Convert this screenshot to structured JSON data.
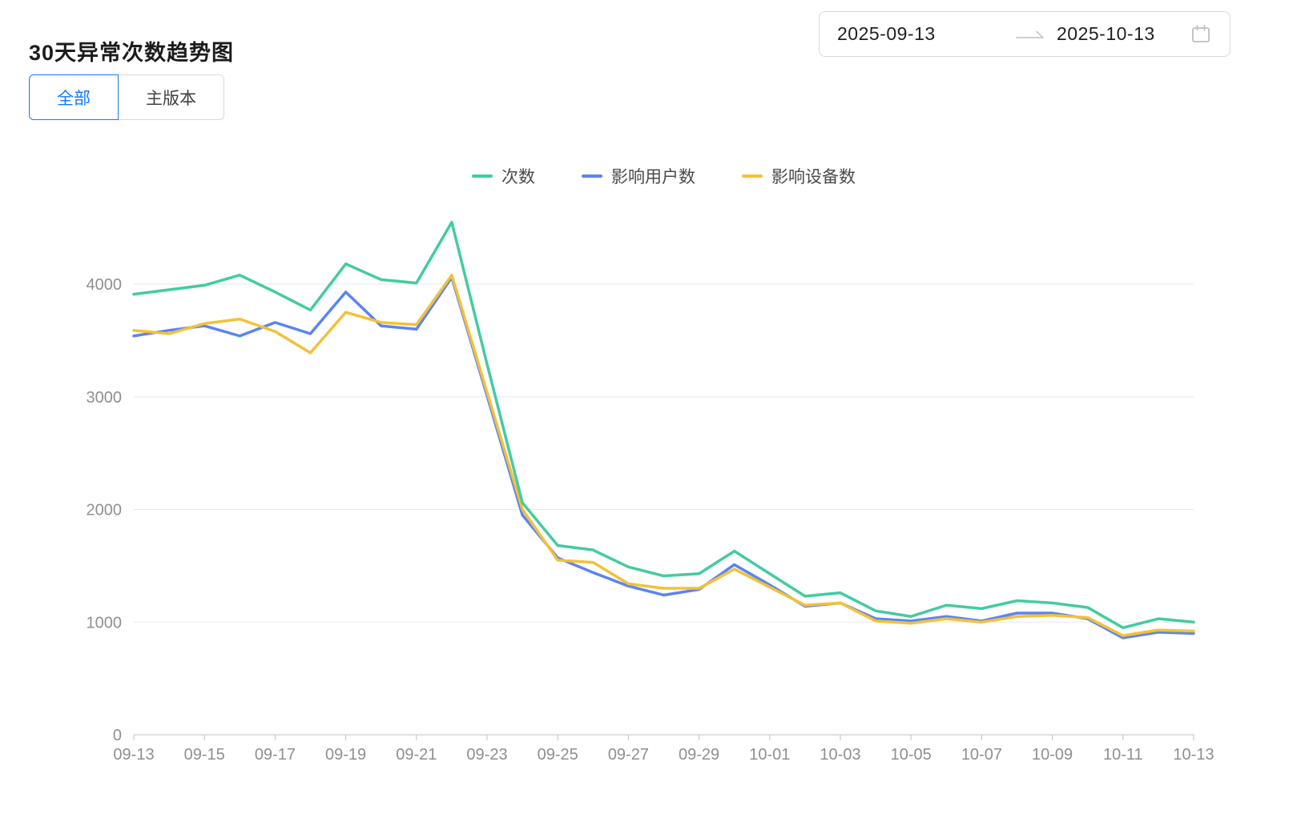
{
  "page": {
    "title": "30天异常次数趋势图"
  },
  "date_picker": {
    "start": "2025-09-13",
    "end": "2025-10-13",
    "arrow_icon": "swap-right-arrow",
    "calendar_icon": "calendar"
  },
  "tabs": [
    {
      "label": "全部",
      "active": true
    },
    {
      "label": "主版本",
      "active": false
    }
  ],
  "colors": {
    "accent_blue": "#1677ff",
    "border_gray": "#d9d9d9",
    "title_text": "#1c1c1c",
    "legend_text": "#4a4a4a"
  },
  "chart_data": {
    "type": "line",
    "title": "30天异常次数趋势图",
    "xlabel": "",
    "ylabel": "",
    "ylim": [
      0,
      4600
    ],
    "y_ticks": [
      0,
      1000,
      2000,
      3000,
      4000
    ],
    "grid": "horizontal-only",
    "legend_position": "top-center",
    "x": [
      "09-13",
      "09-14",
      "09-15",
      "09-16",
      "09-17",
      "09-18",
      "09-19",
      "09-20",
      "09-21",
      "09-22",
      "09-23",
      "09-24",
      "09-25",
      "09-26",
      "09-27",
      "09-28",
      "09-29",
      "09-30",
      "10-01",
      "10-02",
      "10-03",
      "10-04",
      "10-05",
      "10-06",
      "10-07",
      "10-08",
      "10-09",
      "10-10",
      "10-11",
      "10-12",
      "10-13"
    ],
    "x_tick_labels": [
      "09-13",
      "09-15",
      "09-17",
      "09-19",
      "09-21",
      "09-23",
      "09-25",
      "09-27",
      "09-29",
      "10-01",
      "10-03",
      "10-05",
      "10-07",
      "10-09",
      "10-11",
      "10-13"
    ],
    "series": [
      {
        "name": "次数",
        "key": "count",
        "color": "#43cba2",
        "values": [
          3910,
          3950,
          3990,
          4080,
          3930,
          3770,
          4180,
          4040,
          4010,
          4550,
          3290,
          2060,
          1680,
          1640,
          1490,
          1410,
          1430,
          1630,
          1430,
          1230,
          1260,
          1100,
          1050,
          1150,
          1120,
          1190,
          1170,
          1130,
          950,
          1030,
          1000
        ]
      },
      {
        "name": "影响用户数",
        "key": "affected-users",
        "color": "#5b84f2",
        "values": [
          3540,
          3590,
          3630,
          3540,
          3660,
          3560,
          3930,
          3630,
          3600,
          4060,
          3010,
          1950,
          1570,
          1440,
          1320,
          1240,
          1290,
          1510,
          1330,
          1140,
          1170,
          1030,
          1010,
          1050,
          1010,
          1080,
          1080,
          1030,
          860,
          910,
          900
        ]
      },
      {
        "name": "影响设备数",
        "key": "affected-devices",
        "color": "#f3c138",
        "values": [
          3590,
          3560,
          3650,
          3690,
          3580,
          3390,
          3750,
          3660,
          3640,
          4080,
          3040,
          2000,
          1550,
          1530,
          1340,
          1300,
          1300,
          1470,
          1310,
          1150,
          1170,
          1010,
          990,
          1030,
          1000,
          1050,
          1060,
          1040,
          880,
          930,
          920
        ]
      }
    ],
    "style": {
      "grid": "#e8e8e8",
      "axis_line": "#c2c2c2",
      "axis_label": "#8f8f8f",
      "axis_font_size": 20,
      "line_width": 3.5
    }
  }
}
